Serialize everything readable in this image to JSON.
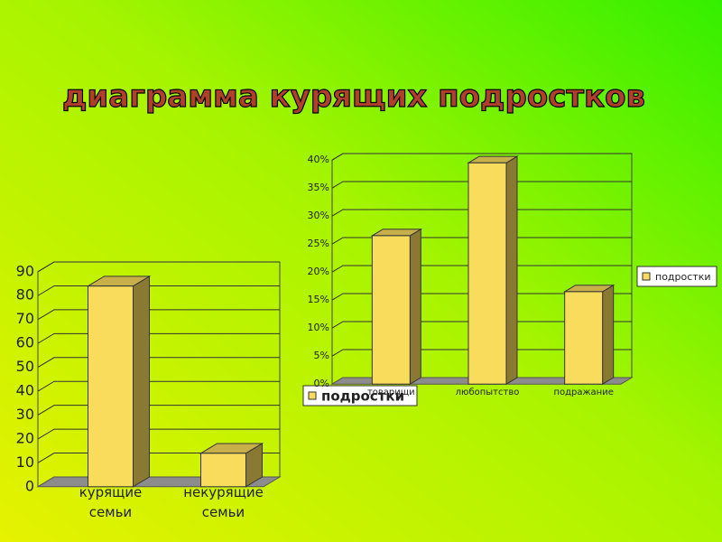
{
  "title": "диаграмма курящих подростков",
  "chart_data": [
    {
      "type": "bar",
      "categories": [
        "курящие семьи",
        "некурящие семьи"
      ],
      "series": [
        {
          "name": "подростки",
          "color": "#f9dc5c",
          "values": [
            84,
            14
          ]
        }
      ],
      "ylim": [
        0,
        90
      ],
      "yticks": [
        0,
        10,
        20,
        30,
        40,
        50,
        60,
        70,
        80,
        90
      ],
      "grid": true,
      "legend": "bottom"
    },
    {
      "type": "bar",
      "categories": [
        "товарищи",
        "любопытство",
        "подражание"
      ],
      "series": [
        {
          "name": "подростки",
          "color": "#f9dc5c",
          "values": [
            26.5,
            39.5,
            16.5
          ]
        }
      ],
      "ylim": [
        0,
        40
      ],
      "yticks": [
        {
          "value": 0,
          "label": "0%"
        },
        {
          "value": 5,
          "label": "5%"
        },
        {
          "value": 10,
          "label": "10%"
        },
        {
          "value": 15,
          "label": "15%"
        },
        {
          "value": 20,
          "label": "20%"
        },
        {
          "value": 25,
          "label": "25%"
        },
        {
          "value": 30,
          "label": "30%"
        },
        {
          "value": 35,
          "label": "35%"
        },
        {
          "value": 40,
          "label": "40%"
        }
      ],
      "grid": true,
      "legend": "right"
    }
  ]
}
